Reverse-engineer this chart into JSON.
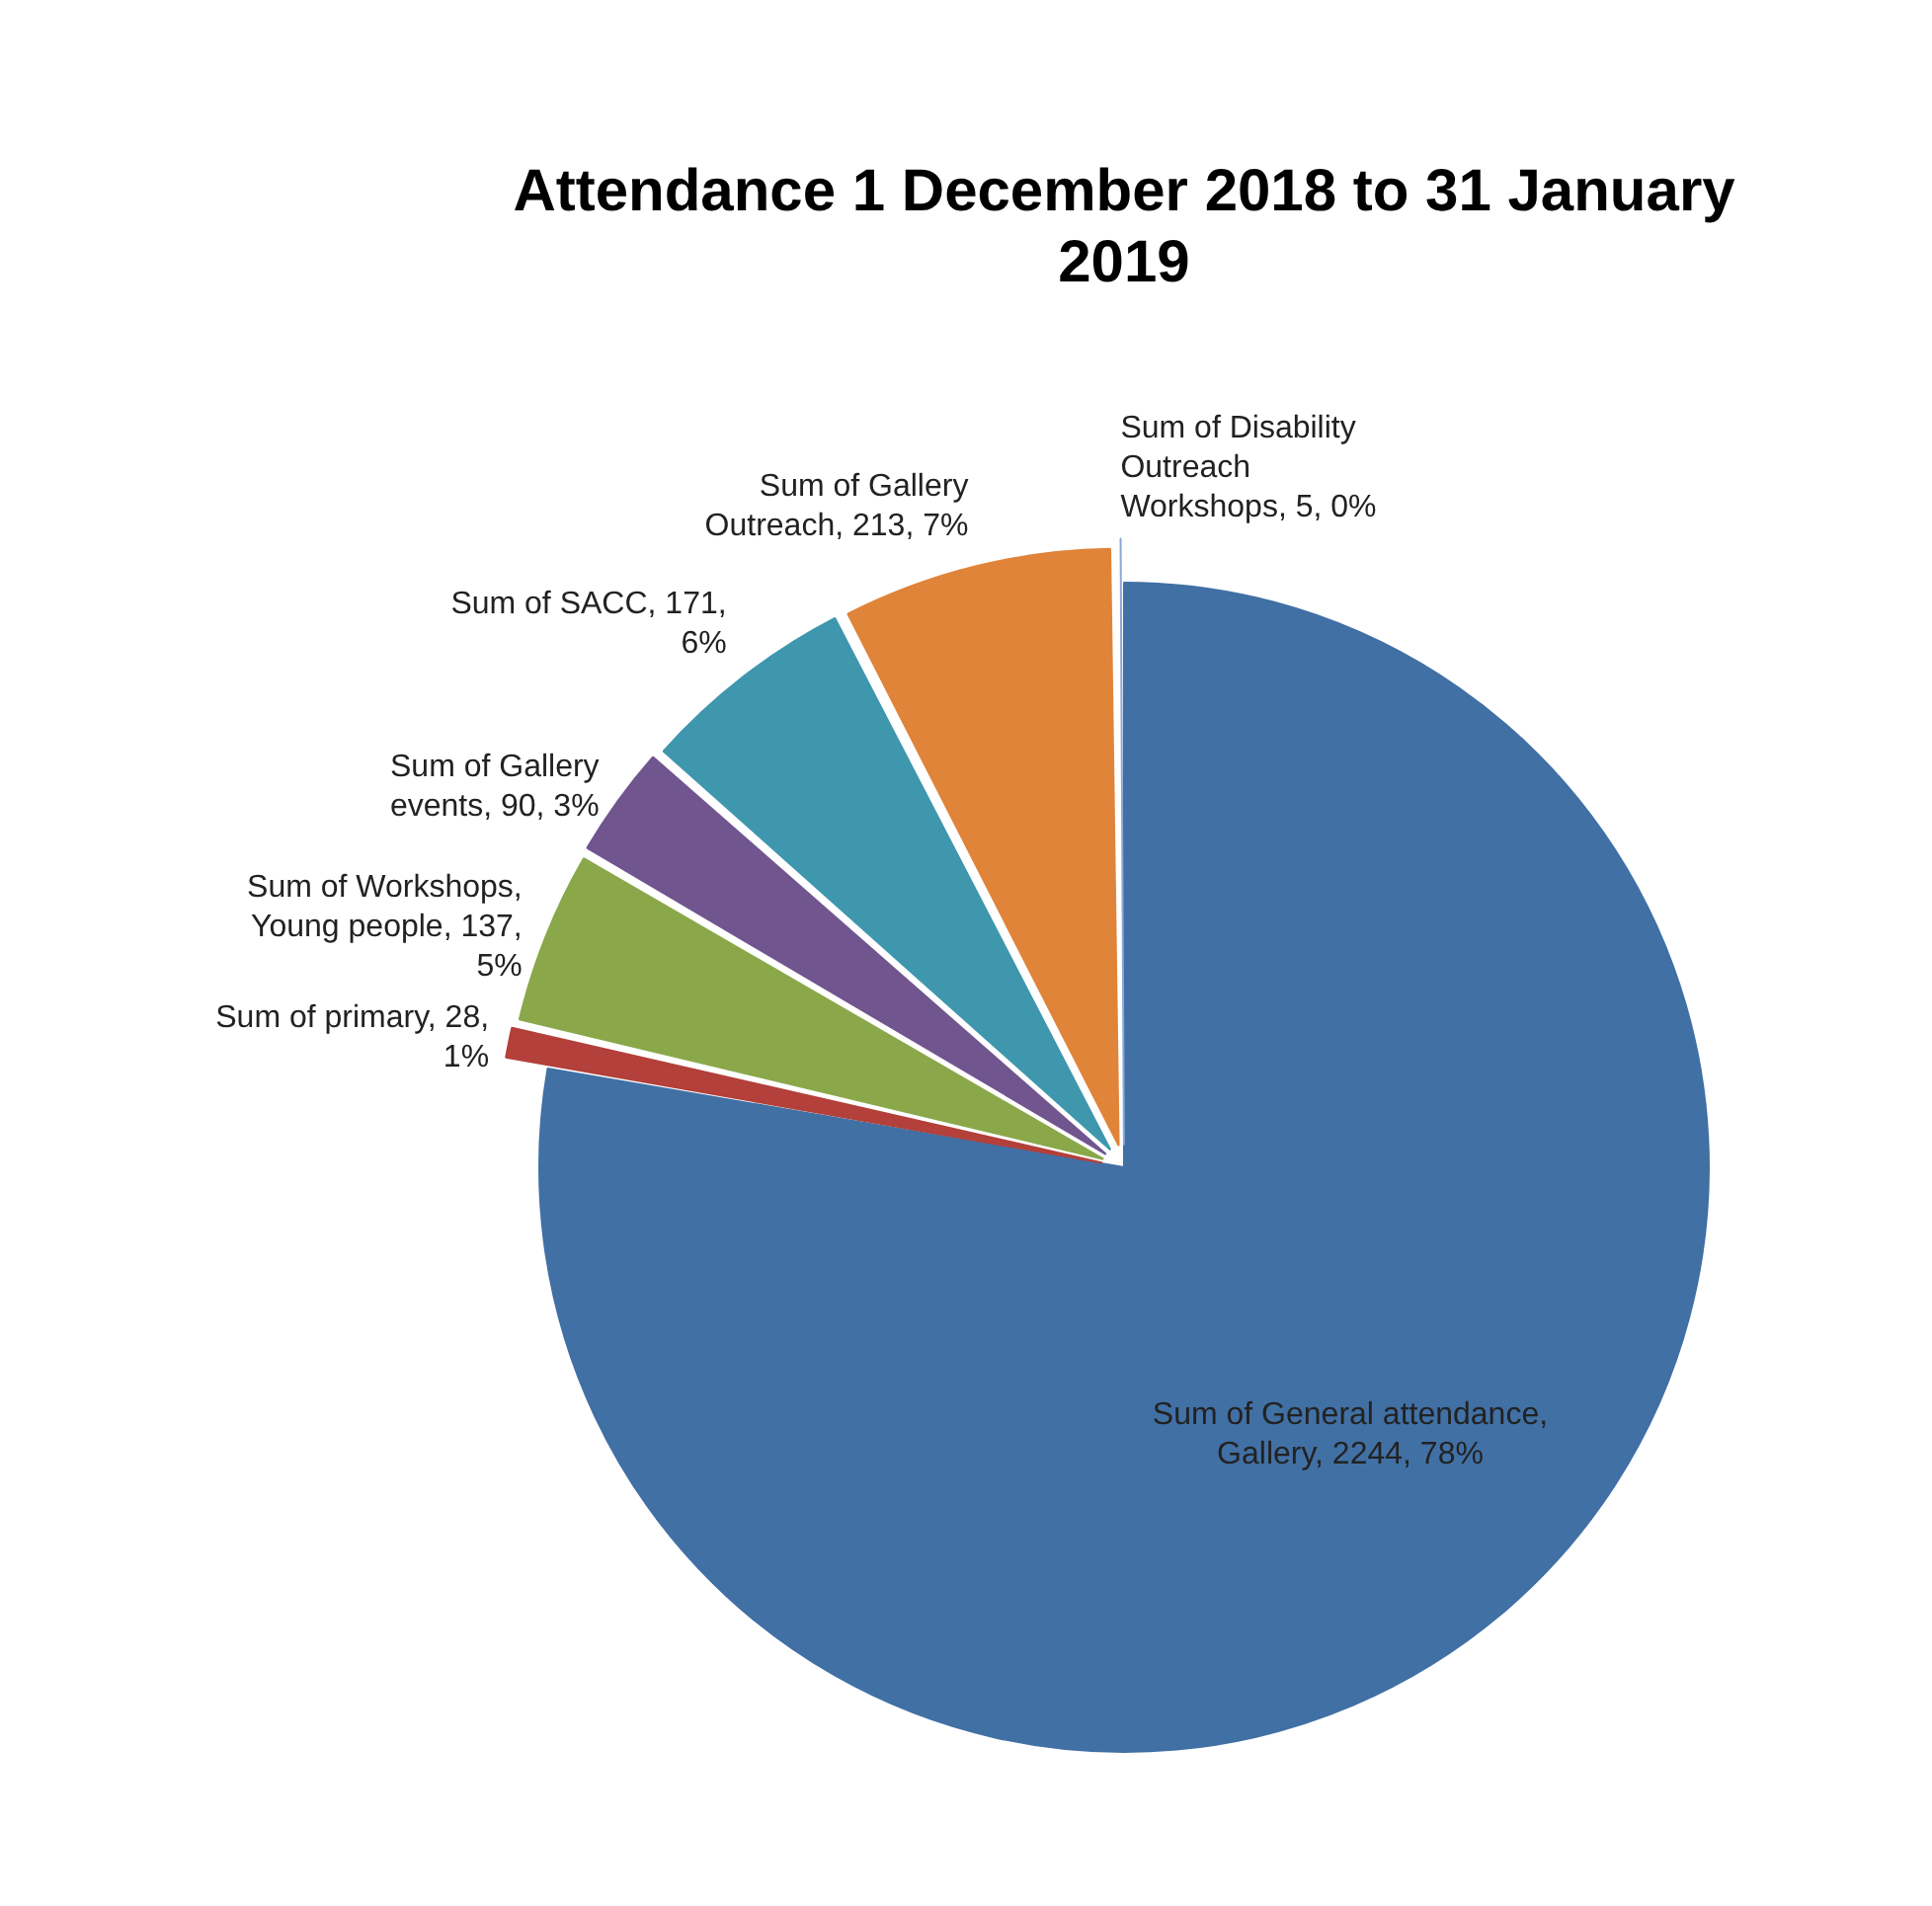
{
  "chart_data": {
    "type": "pie",
    "title": "Attendance 1 December 2018 to 31 January 2019",
    "categories": [
      "Sum of General attendance, Gallery",
      "Sum of primary",
      "Sum of Workshops, Young people",
      "Sum of Gallery events",
      "Sum of SACC",
      "Sum of Gallery Outreach",
      "Sum of Disability Outreach Workshops"
    ],
    "values": [
      2244,
      28,
      137,
      90,
      171,
      213,
      5
    ],
    "value_labels": [
      "2244, 78%",
      "28, 1%",
      "137, 5%",
      "90, 3%",
      "171, 6%",
      "213, 7%",
      "5, 0%"
    ],
    "colors": [
      "#4170a5",
      "#b3403a",
      "#8aa84a",
      "#71558f",
      "#3f97ae",
      "#e0843a",
      "#8aa8d8"
    ],
    "legend": false
  }
}
